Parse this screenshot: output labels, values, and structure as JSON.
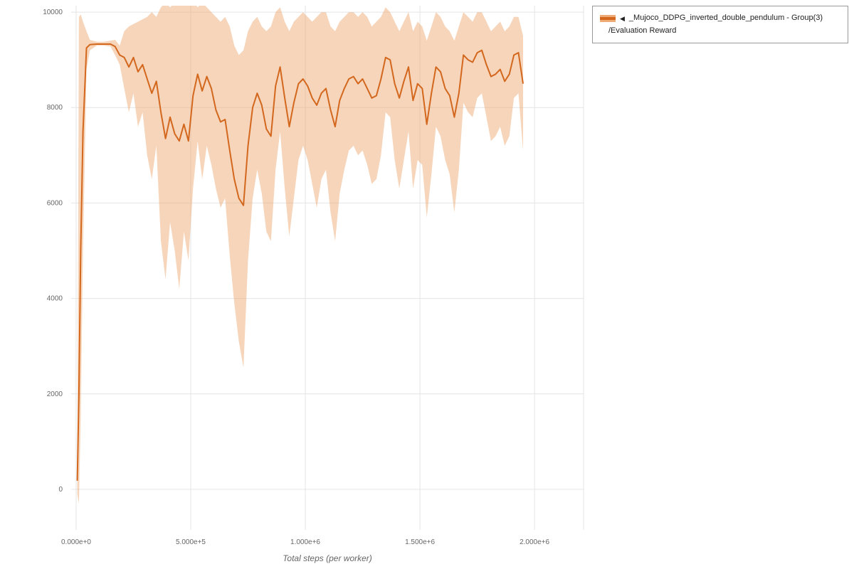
{
  "legend": {
    "collapse_icon": "◀",
    "name": "_Mujoco_DDPG_inverted_double_pendulum - Group(3)",
    "metric": "/Evaluation Reward"
  },
  "chart_data": {
    "type": "line",
    "title": "",
    "xlabel": "Total steps (per worker)",
    "ylabel": "",
    "x_units": "millions of steps",
    "xlim": [
      -0.0217,
      2.214
    ],
    "ylim": [
      -850,
      10135
    ],
    "yticks": [
      0,
      2000,
      4000,
      6000,
      8000,
      10000
    ],
    "xticks": {
      "values": [
        0,
        0.5,
        1.0,
        1.5,
        2.0
      ],
      "labels": [
        "0.000e+0",
        "5.000e+5",
        "1.000e+6",
        "1.500e+6",
        "2.000e+6"
      ]
    },
    "grid": true,
    "legend_position": "top-right",
    "colors": {
      "line": "#d3671d",
      "band": "#eeab76",
      "band_opacity": 0.5,
      "grid": "#e4e4e4",
      "tick_text": "#666666",
      "axis_label": "#666666"
    },
    "series": [
      {
        "name": "_Mujoco_DDPG_inverted_double_pendulum - Group(3) /Evaluation Reward",
        "x": [
          0.005,
          0.012,
          0.02,
          0.03,
          0.045,
          0.06,
          0.09,
          0.12,
          0.15,
          0.17,
          0.19,
          0.21,
          0.23,
          0.25,
          0.27,
          0.29,
          0.31,
          0.33,
          0.35,
          0.37,
          0.39,
          0.41,
          0.43,
          0.45,
          0.47,
          0.49,
          0.51,
          0.53,
          0.55,
          0.57,
          0.59,
          0.61,
          0.63,
          0.65,
          0.67,
          0.69,
          0.71,
          0.73,
          0.75,
          0.77,
          0.79,
          0.81,
          0.83,
          0.85,
          0.87,
          0.89,
          0.91,
          0.93,
          0.95,
          0.97,
          0.99,
          1.01,
          1.03,
          1.05,
          1.07,
          1.09,
          1.11,
          1.13,
          1.15,
          1.17,
          1.19,
          1.21,
          1.23,
          1.25,
          1.27,
          1.29,
          1.31,
          1.33,
          1.35,
          1.37,
          1.39,
          1.41,
          1.43,
          1.45,
          1.47,
          1.49,
          1.51,
          1.53,
          1.55,
          1.57,
          1.59,
          1.61,
          1.63,
          1.65,
          1.67,
          1.69,
          1.71,
          1.73,
          1.75,
          1.77,
          1.79,
          1.81,
          1.83,
          1.85,
          1.87,
          1.89,
          1.91,
          1.93,
          1.95
        ],
        "mean": [
          180,
          2000,
          5000,
          7500,
          9250,
          9320,
          9330,
          9330,
          9330,
          9280,
          9100,
          9050,
          8850,
          9050,
          8750,
          8900,
          8600,
          8300,
          8550,
          7900,
          7350,
          7800,
          7450,
          7300,
          7650,
          7300,
          8250,
          8700,
          8350,
          8650,
          8400,
          7950,
          7700,
          7750,
          7100,
          6500,
          6100,
          5950,
          7200,
          8000,
          8300,
          8050,
          7550,
          7400,
          8450,
          8850,
          8200,
          7600,
          8100,
          8500,
          8600,
          8450,
          8200,
          8050,
          8300,
          8400,
          7950,
          7600,
          8150,
          8400,
          8600,
          8650,
          8500,
          8600,
          8400,
          8200,
          8250,
          8600,
          9050,
          9000,
          8500,
          8200,
          8550,
          8850,
          8150,
          8500,
          8400,
          7650,
          8300,
          8850,
          8750,
          8400,
          8250,
          7800,
          8300,
          9100,
          9000,
          8950,
          9150,
          9200,
          8900,
          8650,
          8700,
          8800,
          8550,
          8700,
          9100,
          9150,
          8500
        ],
        "band_lower": [
          -100,
          -300,
          1500,
          5000,
          8800,
          9200,
          9300,
          9300,
          9280,
          9100,
          8900,
          8400,
          7900,
          8300,
          7600,
          7900,
          7000,
          6500,
          7200,
          5200,
          4400,
          5600,
          5000,
          4200,
          5400,
          4800,
          6300,
          7300,
          6500,
          7200,
          6800,
          6300,
          5900,
          6100,
          4900,
          3900,
          3100,
          2550,
          4800,
          6100,
          6700,
          6200,
          5400,
          5200,
          6700,
          7500,
          6300,
          5300,
          6100,
          6900,
          7200,
          6900,
          6400,
          5900,
          6500,
          6700,
          5800,
          5200,
          6200,
          6700,
          7100,
          7200,
          7000,
          7100,
          6800,
          6400,
          6500,
          7000,
          7900,
          7800,
          6900,
          6300,
          6900,
          7500,
          6300,
          6900,
          6800,
          5700,
          6600,
          7600,
          7400,
          6900,
          6600,
          5800,
          6700,
          8100,
          7900,
          7800,
          8200,
          8300,
          7800,
          7300,
          7400,
          7600,
          7200,
          7400,
          8200,
          8300,
          7100
        ],
        "band_upper": [
          400,
          9900,
          9950,
          9800,
          9600,
          9420,
          9380,
          9380,
          9400,
          9420,
          9300,
          9600,
          9700,
          9750,
          9800,
          9850,
          9900,
          10000,
          9900,
          10100,
          10200,
          10100,
          10200,
          10300,
          10200,
          10300,
          10250,
          10100,
          10200,
          10100,
          10000,
          9900,
          9800,
          9900,
          9700,
          9300,
          9100,
          9200,
          9600,
          9800,
          9900,
          9700,
          9600,
          9700,
          10000,
          10100,
          9800,
          9600,
          9800,
          9900,
          10000,
          9900,
          9800,
          9900,
          10000,
          10000,
          9700,
          9600,
          9800,
          9900,
          10000,
          10000,
          9900,
          10000,
          9900,
          9700,
          9800,
          9900,
          10100,
          10000,
          9800,
          9600,
          9800,
          10000,
          9600,
          9800,
          9700,
          9400,
          9700,
          10000,
          9900,
          9700,
          9600,
          9400,
          9700,
          10000,
          9900,
          9800,
          10000,
          10000,
          9800,
          9600,
          9700,
          9800,
          9600,
          9700,
          9900,
          9900,
          9500
        ]
      }
    ]
  }
}
